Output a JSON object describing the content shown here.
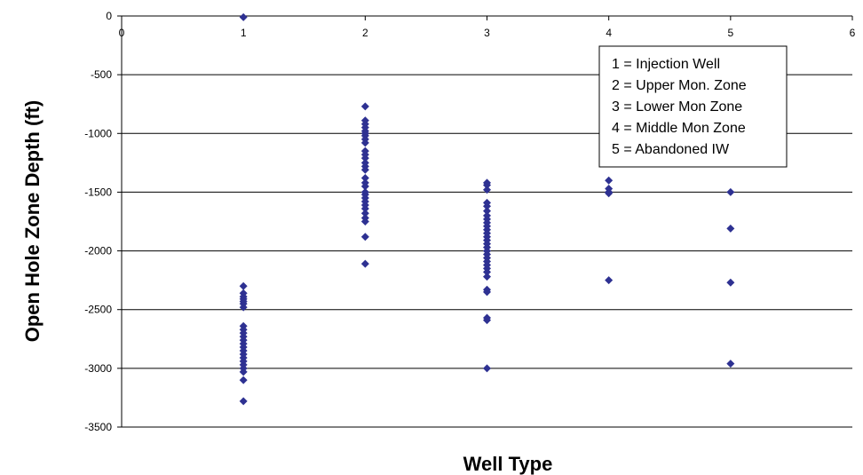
{
  "chart_data": {
    "type": "scatter",
    "title": "",
    "xlabel": "Well Type",
    "ylabel": "Open Hole Zone Depth (ft)",
    "xlim": [
      0,
      6
    ],
    "ylim": [
      -3500,
      0
    ],
    "xticks": [
      0,
      1,
      2,
      3,
      4,
      5,
      6
    ],
    "yticks": [
      0,
      -500,
      -1000,
      -1500,
      -2000,
      -2500,
      -3000,
      -3500
    ],
    "grid": "horizontal",
    "legend": {
      "placement": "top-right",
      "entries": [
        "1 = Injection Well",
        "2 = Upper Mon. Zone",
        "3 = Lower Mon Zone",
        "4 = Middle Mon Zone",
        "5 = Abandoned IW"
      ]
    },
    "marker_color": "#2e3192",
    "series": [
      {
        "x": 1,
        "values": [
          -10,
          -2300,
          -2360,
          -2390,
          -2410,
          -2430,
          -2450,
          -2480,
          -2640,
          -2670,
          -2700,
          -2730,
          -2760,
          -2790,
          -2820,
          -2850,
          -2880,
          -2910,
          -2940,
          -2970,
          -3000,
          -3030,
          -3100,
          -3280
        ]
      },
      {
        "x": 2,
        "values": [
          -770,
          -890,
          -920,
          -950,
          -980,
          -1000,
          -1020,
          -1050,
          -1080,
          -1150,
          -1180,
          -1210,
          -1250,
          -1280,
          -1310,
          -1380,
          -1420,
          -1450,
          -1500,
          -1520,
          -1550,
          -1580,
          -1610,
          -1640,
          -1680,
          -1720,
          -1750,
          -1880,
          -2110
        ]
      },
      {
        "x": 3,
        "values": [
          -1420,
          -1440,
          -1480,
          -1590,
          -1620,
          -1660,
          -1700,
          -1730,
          -1760,
          -1790,
          -1820,
          -1850,
          -1880,
          -1910,
          -1940,
          -1970,
          -2000,
          -2030,
          -2060,
          -2090,
          -2120,
          -2150,
          -2180,
          -2220,
          -2330,
          -2350,
          -2570,
          -2590,
          -3000
        ]
      },
      {
        "x": 4,
        "values": [
          -1400,
          -1470,
          -1500,
          -1510,
          -2250
        ]
      },
      {
        "x": 5,
        "values": [
          -1500,
          -1810,
          -2270,
          -2960
        ]
      }
    ]
  }
}
